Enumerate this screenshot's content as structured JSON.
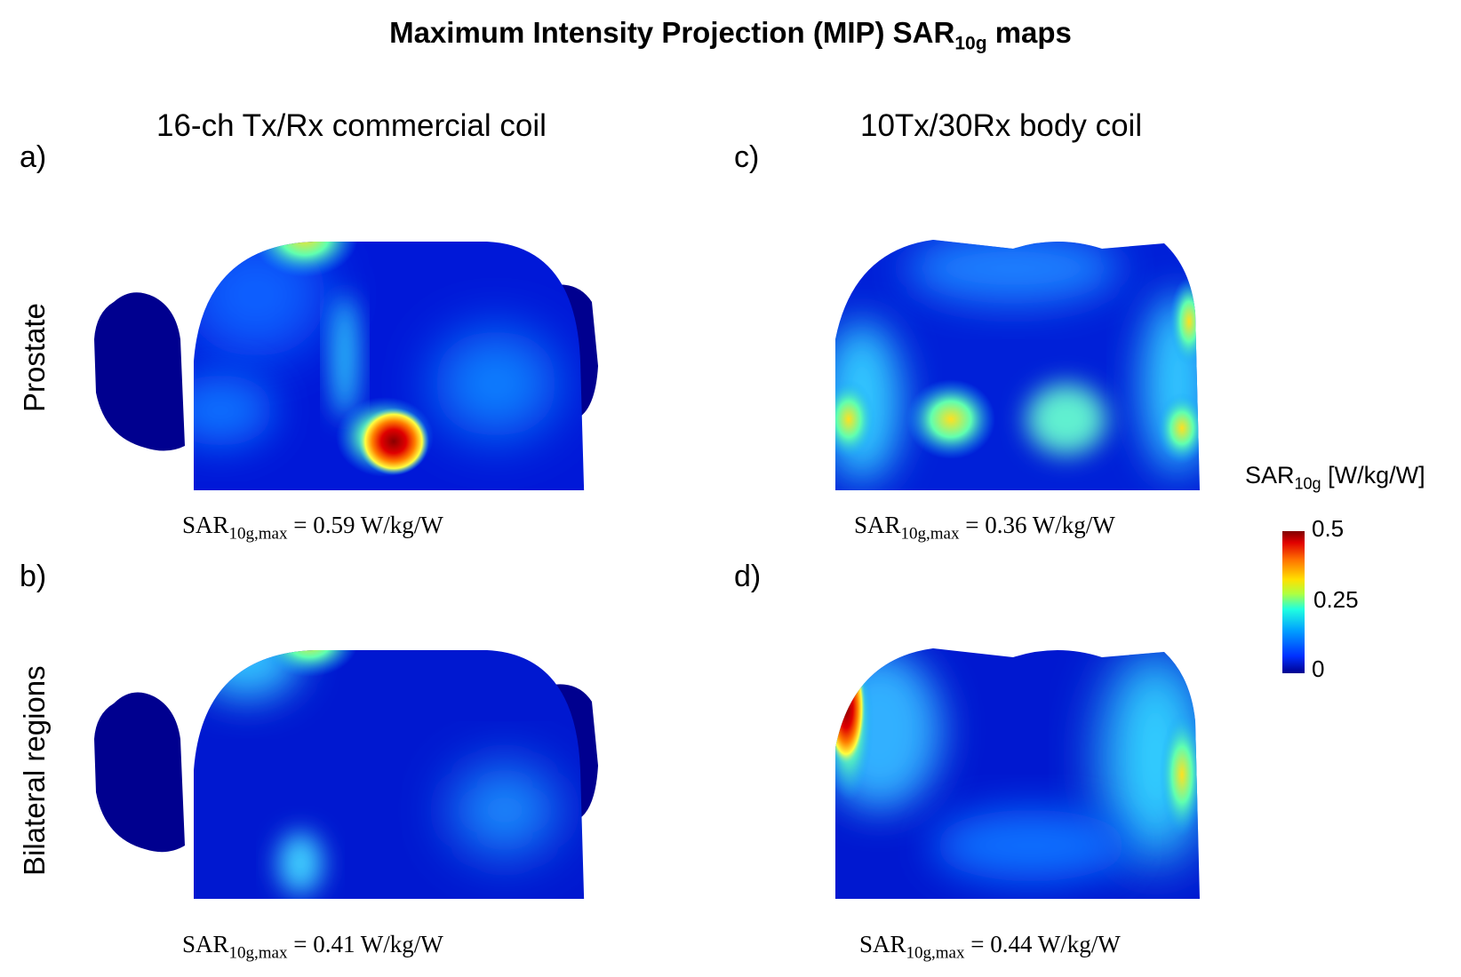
{
  "figure": {
    "title_main": "Maximum Intensity Projection (MIP) SAR",
    "title_sub": "10g",
    "title_tail": " maps"
  },
  "columns": [
    {
      "label": "16-ch Tx/Rx commercial  coil"
    },
    {
      "label": "10Tx/30Rx body coil"
    }
  ],
  "rows": [
    {
      "label": "Prostate"
    },
    {
      "label": "Bilateral regions"
    }
  ],
  "panels": [
    {
      "id": "a)",
      "sar_base": "SAR",
      "sar_sub": "10g,max",
      "sar_value": " = 0.59 W/kg/W"
    },
    {
      "id": "b)",
      "sar_base": "SAR",
      "sar_sub": "10g,max",
      "sar_value": " = 0.41  W/kg/W"
    },
    {
      "id": "c)",
      "sar_base": "SAR",
      "sar_sub": "10g,max",
      "sar_value": " = 0.36  W/kg/W"
    },
    {
      "id": "d)",
      "sar_base": "SAR",
      "sar_sub": "10g,max",
      "sar_value": " = 0.44  W/kg/W"
    }
  ],
  "colorbar": {
    "title_base": "SAR",
    "title_sub": "10g",
    "title_unit": " [W/kg/W]",
    "ticks": [
      "0.5",
      "0.25",
      "0"
    ],
    "colors": {
      "low": "#00008f",
      "mid": "#20ffe0",
      "high": "#800000"
    }
  }
}
